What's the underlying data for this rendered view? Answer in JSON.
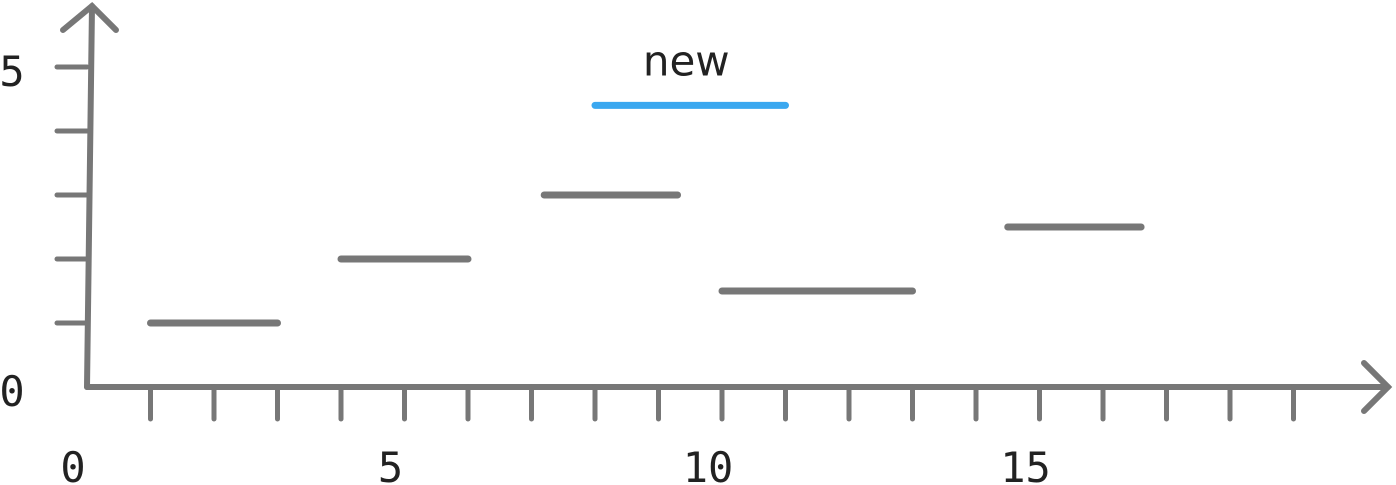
{
  "chart_data": {
    "type": "interval",
    "x_axis": {
      "range": [
        0,
        19
      ],
      "tick_labels": [
        "0",
        "5",
        "10",
        "15"
      ],
      "tick_values": [
        0,
        5,
        10,
        15
      ]
    },
    "y_axis": {
      "range": [
        0,
        5
      ],
      "tick_labels": [
        "0",
        "5"
      ],
      "tick_values": [
        0,
        5
      ]
    },
    "segments": [
      {
        "x_start": 1,
        "x_end": 3,
        "y": 1,
        "color": "#777777"
      },
      {
        "x_start": 4,
        "x_end": 6,
        "y": 2,
        "color": "#777777"
      },
      {
        "x_start": 7.2,
        "x_end": 9.3,
        "y": 3,
        "color": "#777777"
      },
      {
        "x_start": 10,
        "x_end": 13,
        "y": 1.5,
        "color": "#777777"
      },
      {
        "x_start": 14.5,
        "x_end": 16.6,
        "y": 2.5,
        "color": "#777777"
      },
      {
        "x_start": 8,
        "x_end": 11,
        "y": 4.4,
        "color": "#3aa8f0",
        "label": "new"
      }
    ]
  }
}
